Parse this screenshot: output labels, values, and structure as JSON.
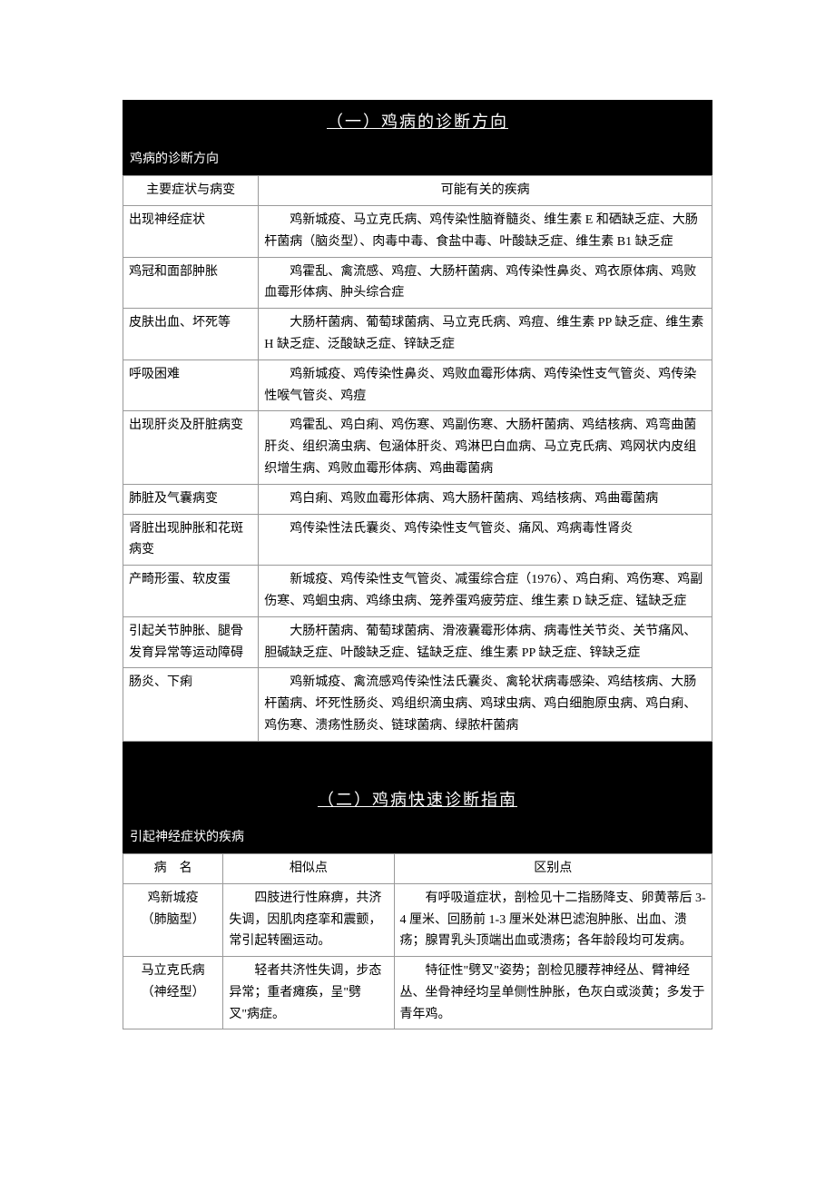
{
  "section1": {
    "title": "（一）鸡病的诊断方向",
    "subtitle": "鸡病的诊断方向",
    "columns": [
      "主要症状与病变",
      "可能有关的疾病"
    ],
    "rows": [
      {
        "symptom": "出现神经症状",
        "diseases": "鸡新城疫、马立克氏病、鸡传染性脑脊髓炎、维生素 E 和硒缺乏症、大肠杆菌病（脑炎型）、肉毒中毒、食盐中毒、叶酸缺乏症、维生素 B1 缺乏症"
      },
      {
        "symptom": "鸡冠和面部肿胀",
        "diseases": "鸡霍乱、禽流感、鸡痘、大肠杆菌病、鸡传染性鼻炎、鸡衣原体病、鸡败血霉形体病、肿头综合症"
      },
      {
        "symptom": "皮肤出血、坏死等",
        "diseases": "大肠杆菌病、葡萄球菌病、马立克氏病、鸡痘、维生素 PP 缺乏症、维生素 H 缺乏症、泛酸缺乏症、锌缺乏症"
      },
      {
        "symptom": "呼吸困难",
        "diseases": "鸡新城疫、鸡传染性鼻炎、鸡败血霉形体病、鸡传染性支气管炎、鸡传染性喉气管炎、鸡痘"
      },
      {
        "symptom": "出现肝炎及肝脏病变",
        "diseases": "鸡霍乱、鸡白痢、鸡伤寒、鸡副伤寒、大肠杆菌病、鸡结核病、鸡弯曲菌肝炎、组织滴虫病、包涵体肝炎、鸡淋巴白血病、马立克氏病、鸡网状内皮组织增生病、鸡败血霉形体病、鸡曲霉菌病"
      },
      {
        "symptom": "肺脏及气囊病变",
        "diseases": "鸡白痢、鸡败血霉形体病、鸡大肠杆菌病、鸡结核病、鸡曲霉菌病"
      },
      {
        "symptom": "肾脏出现肿胀和花斑病变",
        "diseases": "鸡传染性法氏囊炎、鸡传染性支气管炎、痛风、鸡病毒性肾炎"
      },
      {
        "symptom": "产畸形蛋、软皮蛋",
        "diseases": "新城疫、鸡传染性支气管炎、减蛋综合症（1976）、鸡白痢、鸡伤寒、鸡副伤寒、鸡蛔虫病、鸡绦虫病、笼养蛋鸡疲劳症、维生素 D 缺乏症、锰缺乏症"
      },
      {
        "symptom": "引起关节肿胀、腿骨发育异常等运动障碍",
        "diseases": "大肠杆菌病、葡萄球菌病、滑液囊霉形体病、病毒性关节炎、关节痛风、胆碱缺乏症、叶酸缺乏症、锰缺乏症、维生素 PP 缺乏症、锌缺乏症"
      },
      {
        "symptom": "肠炎、下痢",
        "diseases": "鸡新城疫、禽流感鸡传染性法氏囊炎、禽轮状病毒感染、鸡结核病、大肠杆菌病、坏死性肠炎、鸡组织滴虫病、鸡球虫病、鸡白细胞原虫病、鸡白痢、鸡伤寒、溃疡性肠炎、链球菌病、绿脓杆菌病"
      }
    ]
  },
  "section2": {
    "title": "（二）鸡病快速诊断指南",
    "subtitle": "引起神经症状的疾病",
    "columns": [
      "病　名",
      "相似点",
      "区别点"
    ],
    "rows": [
      {
        "name": "鸡新城疫\n（肺脑型）",
        "similar": "四肢进行性麻痹，共济失调，因肌肉痉挛和震颤，常引起转圈运动。",
        "diff": "有呼吸道症状，剖检见十二指肠降支、卵黄蒂后 3-4 厘米、回肠前 1-3 厘米处淋巴滤泡肿胀、出血、溃疡；腺胃乳头顶端出血或溃疡；各年龄段均可发病。"
      },
      {
        "name": "马立克氏病\n（神经型）",
        "similar": "轻者共济性失调，步态异常；重者瘫痪，呈\"劈叉\"病症。",
        "diff": "特征性\"劈叉\"姿势；剖检见腰荐神经丛、臂神经丛、坐骨神经均呈单侧性肿胀，色灰白或淡黄；多发于青年鸡。"
      }
    ]
  }
}
